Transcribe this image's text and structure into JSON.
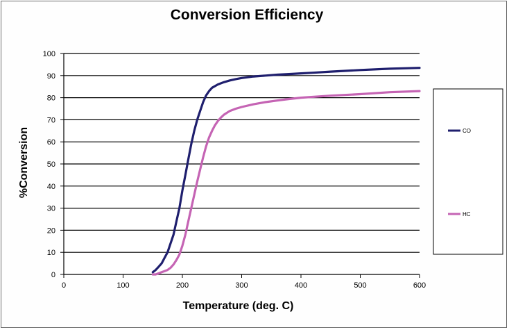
{
  "chart_data": {
    "type": "line",
    "title": "Conversion Efficiency",
    "xlabel": "Temperature (deg. C)",
    "ylabel": "%Conversion",
    "xlim": [
      0,
      600
    ],
    "ylim": [
      0,
      100
    ],
    "xticks": [
      0,
      100,
      200,
      300,
      400,
      500,
      600
    ],
    "yticks": [
      0,
      10,
      20,
      30,
      40,
      50,
      60,
      70,
      80,
      90,
      100
    ],
    "grid": "horizontal",
    "legend_position": "right",
    "series": [
      {
        "name": "CO",
        "color": "#1f1f6e",
        "x": [
          150,
          155,
          160,
          165,
          170,
          175,
          180,
          185,
          190,
          195,
          200,
          205,
          210,
          215,
          220,
          225,
          230,
          235,
          240,
          245,
          250,
          260,
          270,
          280,
          290,
          300,
          320,
          340,
          360,
          380,
          400,
          420,
          450,
          500,
          550,
          600
        ],
        "y": [
          1,
          2,
          3.5,
          5,
          7.5,
          10,
          14,
          18,
          24,
          30,
          38,
          45,
          52,
          59,
          65,
          70,
          74,
          78,
          81,
          83,
          84.5,
          86,
          87,
          87.8,
          88.4,
          88.9,
          89.6,
          90,
          90.4,
          90.7,
          91,
          91.3,
          91.8,
          92.5,
          93.1,
          93.5
        ]
      },
      {
        "name": "HC",
        "color": "#c564b4",
        "x": [
          150,
          155,
          160,
          165,
          170,
          175,
          180,
          185,
          190,
          195,
          200,
          205,
          210,
          215,
          220,
          225,
          230,
          235,
          240,
          245,
          250,
          255,
          260,
          265,
          270,
          280,
          290,
          300,
          320,
          340,
          360,
          380,
          400,
          450,
          500,
          550,
          600
        ],
        "y": [
          0,
          0,
          0.5,
          1,
          1.5,
          2,
          3,
          4.5,
          6.5,
          9,
          13,
          18,
          24,
          30,
          36,
          42,
          47.5,
          53,
          58,
          62,
          65,
          67.5,
          69.5,
          71,
          72.3,
          74,
          75,
          75.8,
          77,
          78,
          78.7,
          79.4,
          80,
          80.9,
          81.6,
          82.5,
          83
        ]
      }
    ]
  }
}
